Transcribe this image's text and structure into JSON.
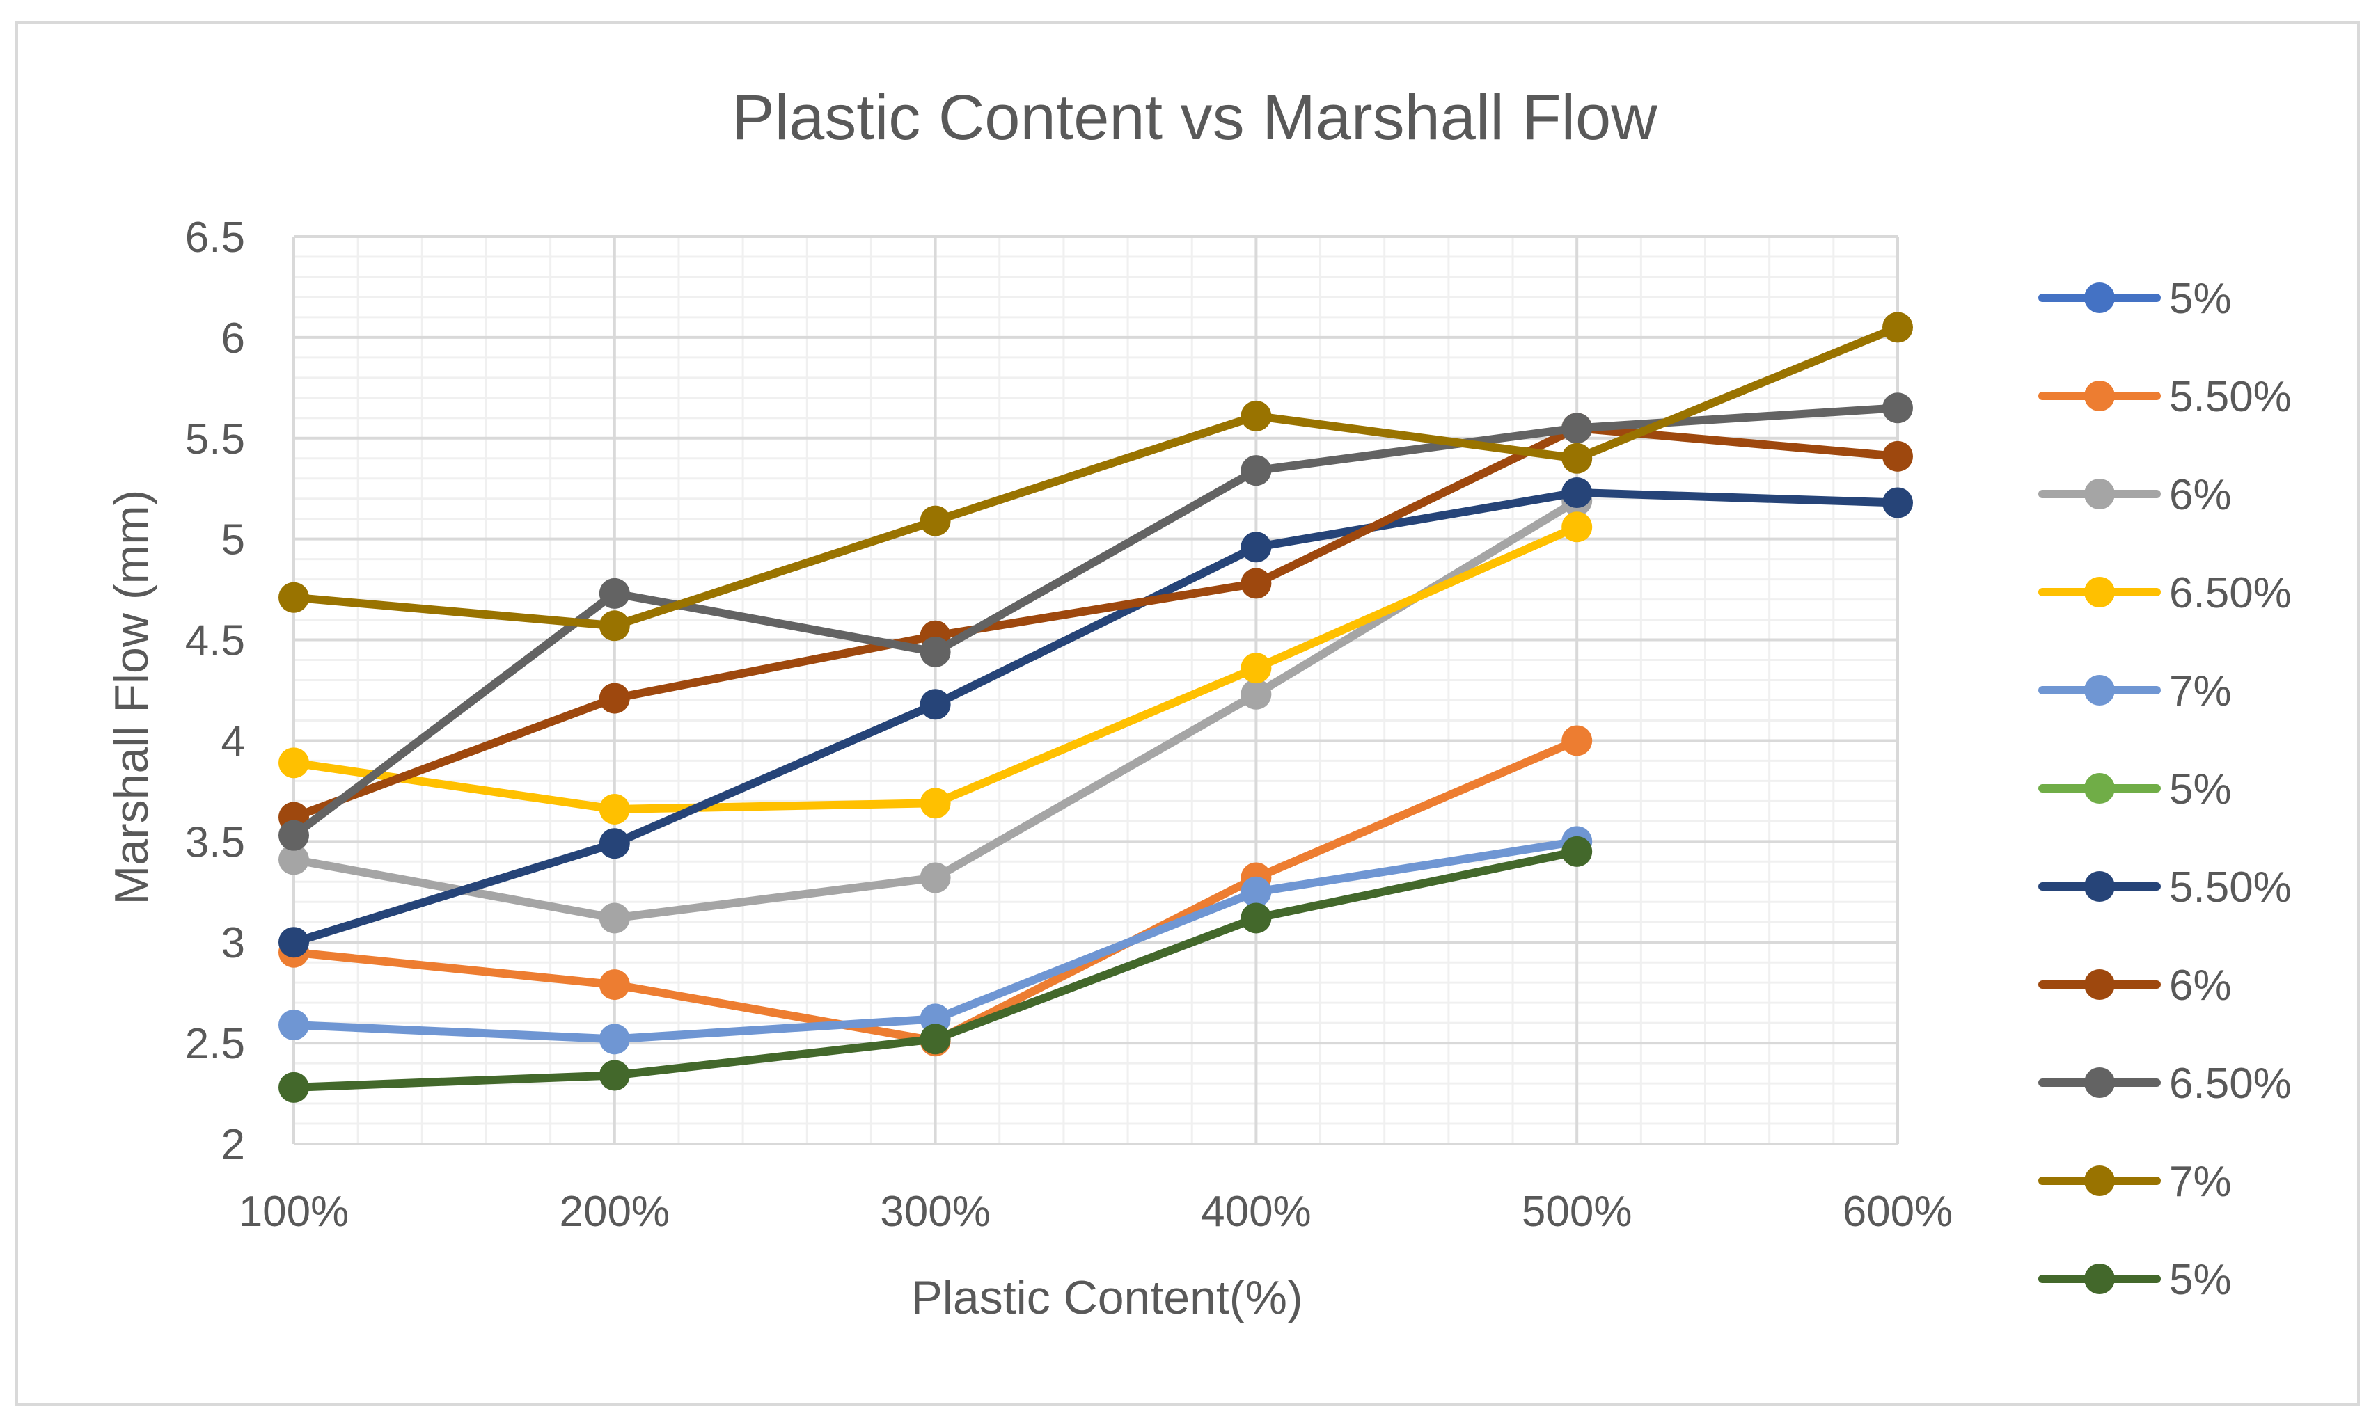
{
  "chart_data": {
    "type": "line",
    "title": "Plastic Content vs Marshall Flow",
    "xlabel": "Plastic Content(%)",
    "ylabel": "Marshall Flow (mm)",
    "categories": [
      "100%",
      "200%",
      "300%",
      "400%",
      "500%",
      "600%"
    ],
    "ylim": [
      2,
      6.5
    ],
    "yticks": [
      "2",
      "2.5",
      "3",
      "3.5",
      "4",
      "4.5",
      "5",
      "5.5",
      "6",
      "6.5"
    ],
    "grid": true,
    "legend_position": "right",
    "series": [
      {
        "name": "5%",
        "color": "#4472c4",
        "values": [
          null,
          null,
          null,
          null,
          null,
          null
        ]
      },
      {
        "name": "5.50%",
        "color": "#ed7d31",
        "values": [
          2.95,
          2.79,
          2.51,
          3.32,
          4.0,
          null
        ]
      },
      {
        "name": "6%",
        "color": "#a5a5a5",
        "values": [
          3.41,
          3.12,
          3.32,
          4.23,
          5.19,
          null
        ]
      },
      {
        "name": "6.50%",
        "color": "#ffc000",
        "values": [
          3.89,
          3.66,
          3.69,
          4.36,
          5.06,
          null
        ]
      },
      {
        "name": "7%",
        "color": "#6f96d3",
        "values": [
          2.59,
          2.52,
          2.62,
          3.25,
          3.5,
          null
        ]
      },
      {
        "name": "5%",
        "color": "#70ad47",
        "values": [
          null,
          null,
          null,
          null,
          null,
          null
        ]
      },
      {
        "name": "5.50%",
        "color": "#264478",
        "values": [
          3.0,
          3.49,
          4.18,
          4.96,
          5.23,
          5.18
        ]
      },
      {
        "name": "6%",
        "color": "#9e480e",
        "values": [
          3.62,
          4.21,
          4.52,
          4.78,
          5.55,
          5.41
        ]
      },
      {
        "name": "6.50%",
        "color": "#636363",
        "values": [
          3.53,
          4.73,
          4.44,
          5.34,
          5.55,
          5.65
        ]
      },
      {
        "name": "7%",
        "color": "#997300",
        "values": [
          4.71,
          4.57,
          5.09,
          5.61,
          5.4,
          6.05
        ]
      },
      {
        "name": "5%",
        "color": "#43682b",
        "values": [
          2.28,
          2.34,
          2.52,
          3.12,
          3.45,
          null
        ]
      }
    ]
  }
}
